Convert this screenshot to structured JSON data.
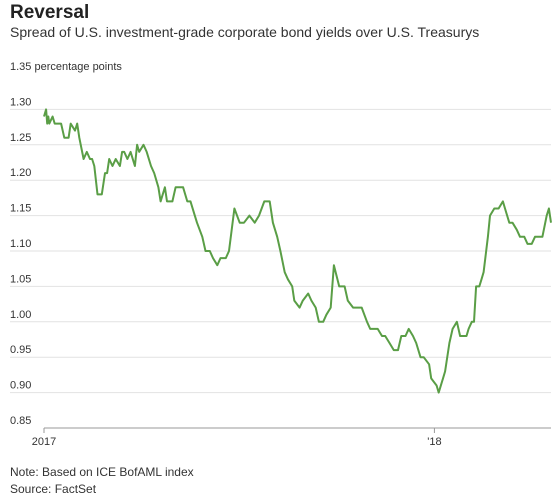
{
  "header": {
    "title": "Reversal",
    "subtitle": "Spread of U.S. investment-grade corporate bond yields over U.S. Treasurys"
  },
  "footer": {
    "note": "Note: Based on ICE BofAML index",
    "source": "Source: FactSet"
  },
  "colors": {
    "line": "#5a9e46",
    "grid": "#e2e2e2",
    "axis": "#999999",
    "text": "#333333"
  },
  "chart_data": {
    "type": "line",
    "title": "",
    "ylabel": "",
    "unit_label": "1.35 percentage points",
    "ylim": [
      0.85,
      1.35
    ],
    "yticks": [
      1.35,
      1.3,
      1.25,
      1.2,
      1.15,
      1.1,
      1.05,
      1.0,
      0.95,
      0.9,
      0.85
    ],
    "ytick_labels": [
      "1.35 percentage points",
      "1.30",
      "1.25",
      "1.20",
      "1.15",
      "1.10",
      "1.05",
      "1.00",
      "0.95",
      "0.90",
      "0.85"
    ],
    "xlim": [
      "2017-01-01",
      "2018-04-20"
    ],
    "xticks": [
      {
        "date": "2017-01-01",
        "label": "2017"
      },
      {
        "date": "2018-01-01",
        "label": "'18"
      }
    ],
    "grid": true,
    "legend": "none",
    "series": [
      {
        "x": [
          "2017-01-01",
          "2017-01-03",
          "2017-01-04",
          "2017-01-05",
          "2017-01-06",
          "2017-01-09",
          "2017-01-11",
          "2017-01-13",
          "2017-01-17",
          "2017-01-20",
          "2017-01-24",
          "2017-01-26",
          "2017-01-30",
          "2017-02-01",
          "2017-02-03",
          "2017-02-07",
          "2017-02-10",
          "2017-02-13",
          "2017-02-15",
          "2017-02-17",
          "2017-02-20",
          "2017-02-22",
          "2017-02-24",
          "2017-02-27",
          "2017-03-01",
          "2017-03-03",
          "2017-03-06",
          "2017-03-09",
          "2017-03-13",
          "2017-03-15",
          "2017-03-17",
          "2017-03-20",
          "2017-03-23",
          "2017-03-27",
          "2017-03-29",
          "2017-03-31",
          "2017-04-04",
          "2017-04-07",
          "2017-04-11",
          "2017-04-14",
          "2017-04-18",
          "2017-04-20",
          "2017-04-24",
          "2017-04-26",
          "2017-05-01",
          "2017-05-04",
          "2017-05-08",
          "2017-05-11",
          "2017-05-15",
          "2017-05-18",
          "2017-05-22",
          "2017-05-24",
          "2017-05-29",
          "2017-06-01",
          "2017-06-05",
          "2017-06-08",
          "2017-06-12",
          "2017-06-15",
          "2017-06-20",
          "2017-06-23",
          "2017-06-28",
          "2017-07-03",
          "2017-07-07",
          "2017-07-12",
          "2017-07-17",
          "2017-07-21",
          "2017-07-26",
          "2017-07-31",
          "2017-08-03",
          "2017-08-07",
          "2017-08-10",
          "2017-08-14",
          "2017-08-17",
          "2017-08-21",
          "2017-08-23",
          "2017-08-28",
          "2017-08-31",
          "2017-09-05",
          "2017-09-08",
          "2017-09-12",
          "2017-09-15",
          "2017-09-19",
          "2017-09-22",
          "2017-09-26",
          "2017-09-29",
          "2017-10-04",
          "2017-10-09",
          "2017-10-12",
          "2017-10-17",
          "2017-10-20",
          "2017-10-25",
          "2017-10-30",
          "2017-11-02",
          "2017-11-06",
          "2017-11-09",
          "2017-11-13",
          "2017-11-16",
          "2017-11-20",
          "2017-11-24",
          "2017-11-28",
          "2017-12-01",
          "2017-12-05",
          "2017-12-08",
          "2017-12-12",
          "2017-12-15",
          "2017-12-19",
          "2017-12-22",
          "2017-12-27",
          "2017-12-29",
          "2018-01-03",
          "2018-01-05",
          "2018-01-09",
          "2018-01-11",
          "2018-01-15",
          "2018-01-18",
          "2018-01-22",
          "2018-01-25",
          "2018-01-29",
          "2018-01-31",
          "2018-02-02",
          "2018-02-05",
          "2018-02-07",
          "2018-02-09",
          "2018-02-12",
          "2018-02-14",
          "2018-02-16",
          "2018-02-20",
          "2018-02-22",
          "2018-02-26",
          "2018-02-28",
          "2018-03-02",
          "2018-03-06",
          "2018-03-08",
          "2018-03-12",
          "2018-03-15",
          "2018-03-19",
          "2018-03-22",
          "2018-03-26",
          "2018-03-29",
          "2018-04-02",
          "2018-04-05",
          "2018-04-09",
          "2018-04-12",
          "2018-04-16",
          "2018-04-18",
          "2018-04-20"
        ],
        "y": [
          1.29,
          1.3,
          1.28,
          1.29,
          1.28,
          1.29,
          1.28,
          1.28,
          1.28,
          1.26,
          1.26,
          1.28,
          1.27,
          1.28,
          1.26,
          1.23,
          1.24,
          1.23,
          1.23,
          1.22,
          1.18,
          1.18,
          1.18,
          1.21,
          1.21,
          1.23,
          1.22,
          1.23,
          1.22,
          1.24,
          1.24,
          1.23,
          1.24,
          1.22,
          1.25,
          1.24,
          1.25,
          1.24,
          1.22,
          1.21,
          1.19,
          1.17,
          1.19,
          1.17,
          1.17,
          1.19,
          1.19,
          1.19,
          1.17,
          1.17,
          1.15,
          1.14,
          1.12,
          1.1,
          1.1,
          1.09,
          1.08,
          1.09,
          1.09,
          1.1,
          1.16,
          1.14,
          1.14,
          1.15,
          1.14,
          1.15,
          1.17,
          1.17,
          1.14,
          1.12,
          1.1,
          1.07,
          1.06,
          1.05,
          1.03,
          1.02,
          1.03,
          1.04,
          1.03,
          1.02,
          1.0,
          1.0,
          1.01,
          1.02,
          1.08,
          1.05,
          1.05,
          1.03,
          1.02,
          1.02,
          1.02,
          1.0,
          0.99,
          0.99,
          0.99,
          0.98,
          0.98,
          0.97,
          0.96,
          0.96,
          0.98,
          0.98,
          0.99,
          0.98,
          0.97,
          0.95,
          0.95,
          0.94,
          0.92,
          0.91,
          0.9,
          0.92,
          0.93,
          0.97,
          0.99,
          1.0,
          0.98,
          0.98,
          0.98,
          0.99,
          1.0,
          1.0,
          1.05,
          1.05,
          1.06,
          1.07,
          1.12,
          1.15,
          1.16,
          1.16,
          1.16,
          1.17,
          1.16,
          1.14,
          1.14,
          1.13,
          1.12,
          1.12,
          1.11,
          1.11,
          1.12,
          1.12,
          1.12,
          1.15,
          1.16,
          1.14
        ]
      }
    ]
  }
}
